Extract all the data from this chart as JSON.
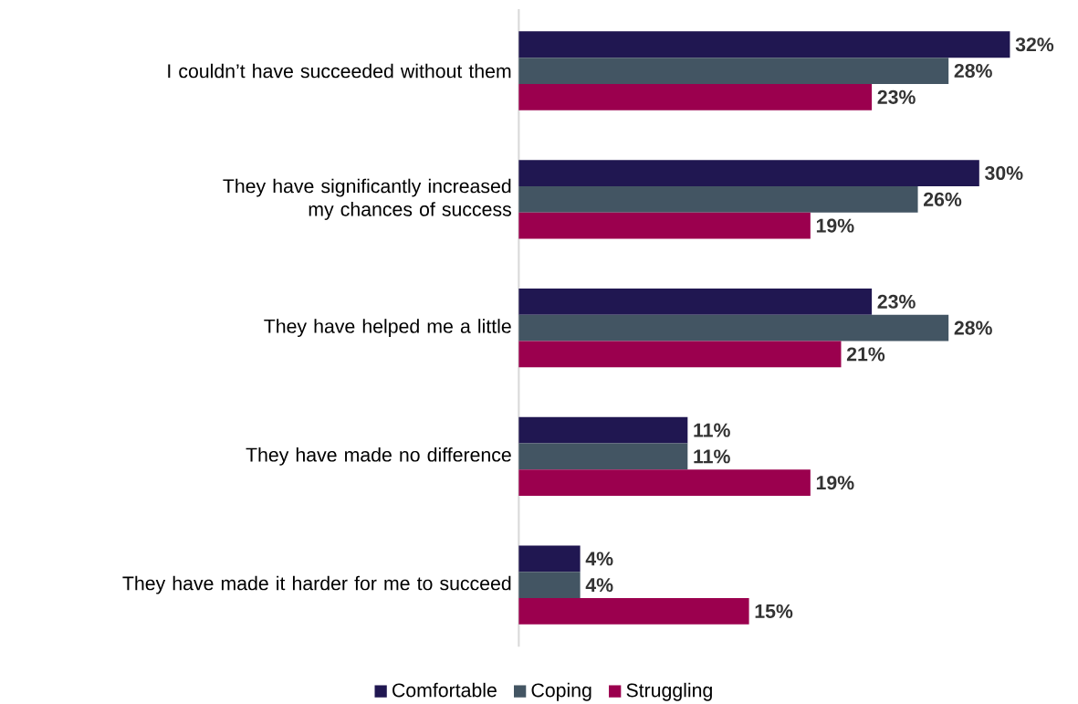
{
  "chart_data": {
    "type": "bar",
    "orientation": "horizontal",
    "legend": "bottom",
    "tick_labels": "y",
    "categories": [
      "I couldn’t have succeeded without them",
      "They have significantly increased my chances of success",
      "They have helped me a little",
      "They have made no difference",
      "They have made it harder for me to succeed"
    ],
    "series": [
      {
        "name": "Comfortable",
        "color": "#201751",
        "values": [
          32,
          30,
          23,
          11,
          4
        ],
        "value_labels": [
          "32%",
          "30%",
          "23%",
          "11%",
          "4%"
        ]
      },
      {
        "name": "Coping",
        "color": "#435563",
        "values": [
          28,
          26,
          28,
          11,
          4
        ],
        "value_labels": [
          "28%",
          "26%",
          "28%",
          "11%",
          "4%"
        ]
      },
      {
        "name": "Struggling",
        "color": "#9b004e",
        "values": [
          23,
          19,
          21,
          19,
          15
        ],
        "value_labels": [
          "23%",
          "19%",
          "21%",
          "19%",
          "15%"
        ]
      }
    ]
  }
}
